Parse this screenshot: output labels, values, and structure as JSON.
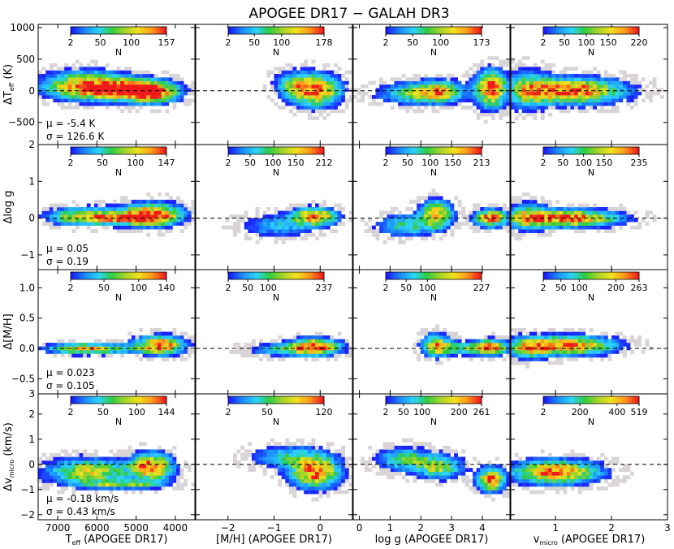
{
  "chart_data": {
    "type": "heatmap",
    "title": "APOGEE DR17 − GALAH DR3",
    "colorbar_label": "N",
    "colormap": [
      "#1a1aff",
      "#1a8cff",
      "#2bd4ff",
      "#2ecc40",
      "#a8d42a",
      "#f2e21a",
      "#ff9a1a",
      "#f01a1a"
    ],
    "outlier_color": "#d8d4d8",
    "zero_line": true,
    "columns": [
      {
        "xlabel": "T_eff (APOGEE DR17)",
        "xlabel_main": "T",
        "xlabel_sub": "eff",
        "xlabel_rest": " (APOGEE DR17)",
        "xlim": [
          7500,
          3500
        ],
        "xticks": [
          7000,
          6000,
          5000,
          4000
        ],
        "xticklabels": [
          "7000",
          "6000",
          "5000",
          "4000"
        ]
      },
      {
        "xlabel": "[M/H] (APOGEE DR17)",
        "xlabel_main": "[M/H] (APOGEE DR17)",
        "xlabel_sub": "",
        "xlabel_rest": "",
        "xlim": [
          -2.7,
          0.7
        ],
        "xticks": [
          -2,
          -1,
          0
        ],
        "xticklabels": [
          "−2",
          "−1",
          "0"
        ]
      },
      {
        "xlabel": "log g (APOGEE DR17)",
        "xlabel_main": "log g (APOGEE DR17)",
        "xlabel_sub": "",
        "xlabel_rest": "",
        "xlim": [
          -0.2,
          4.9
        ],
        "xticks": [
          0,
          1,
          2,
          3,
          4
        ],
        "xticklabels": [
          "0",
          "1",
          "2",
          "3",
          "4"
        ]
      },
      {
        "xlabel": "v_micro (APOGEE DR17)",
        "xlabel_main": "v",
        "xlabel_sub": "micro",
        "xlabel_rest": " (APOGEE DR17)",
        "xlim": [
          0.2,
          3.0
        ],
        "xticks": [
          1,
          2,
          3
        ],
        "xticklabels": [
          "1",
          "2",
          "3"
        ]
      }
    ],
    "rows": [
      {
        "ylabel": "ΔT_eff (K)",
        "ylabel_main": "ΔT",
        "ylabel_sub": "eff",
        "ylabel_rest": " (K)",
        "ylim": [
          -850,
          1050
        ],
        "yticks": [
          -500,
          0,
          500,
          1000
        ],
        "yticklabels": [
          "−500",
          "0",
          "500",
          "1000"
        ],
        "top_label": "",
        "mu": "μ = -5.4 K",
        "sigma": "σ = 126.6 K"
      },
      {
        "ylabel": "Δlog g",
        "ylabel_main": "Δlog g",
        "ylabel_sub": "",
        "ylabel_rest": "",
        "ylim": [
          -1.4,
          2.0
        ],
        "yticks": [
          -1,
          0,
          1
        ],
        "yticklabels": [
          "−1",
          "0",
          "1"
        ],
        "top_label": "2",
        "mu": "μ = 0.05",
        "sigma": "σ = 0.19"
      },
      {
        "ylabel": "Δ[M/H]",
        "ylabel_main": "Δ[M/H]",
        "ylabel_sub": "",
        "ylabel_rest": "",
        "ylim": [
          -0.75,
          1.3
        ],
        "yticks": [
          -0.5,
          0.0,
          0.5,
          1.0
        ],
        "yticklabels": [
          "−0.5",
          "0.0",
          "0.5",
          "1.0"
        ],
        "top_label": "",
        "mu": "μ = 0.023",
        "sigma": "σ = 0.105"
      },
      {
        "ylabel": "Δv_micro (km/s)",
        "ylabel_main": "Δv",
        "ylabel_sub": "micro",
        "ylabel_rest": " (km/s)",
        "ylim": [
          -2.2,
          2.8
        ],
        "yticks": [
          -2,
          -1,
          0,
          1,
          2
        ],
        "yticklabels": [
          "−2",
          "−1",
          "0",
          "1",
          "2"
        ],
        "top_label": "3",
        "mu": "μ = -0.18 km/s",
        "sigma": "σ = 0.43 km/s"
      }
    ],
    "colorbars": [
      [
        {
          "ticks": [
            "2",
            "50",
            "100",
            "157"
          ],
          "max": 157
        },
        {
          "ticks": [
            "2",
            "50",
            "100",
            "178"
          ],
          "max": 178
        },
        {
          "ticks": [
            "2",
            "50",
            "100",
            "173"
          ],
          "max": 173
        },
        {
          "ticks": [
            "2",
            "50",
            "100",
            "150",
            "220"
          ],
          "max": 220
        }
      ],
      [
        {
          "ticks": [
            "2",
            "50",
            "100",
            "147"
          ],
          "max": 147
        },
        {
          "ticks": [
            "2",
            "50",
            "100",
            "150",
            "212"
          ],
          "max": 212
        },
        {
          "ticks": [
            "2",
            "50",
            "100",
            "150",
            "213"
          ],
          "max": 213
        },
        {
          "ticks": [
            "2",
            "50",
            "100",
            "150",
            "235"
          ],
          "max": 235
        }
      ],
      [
        {
          "ticks": [
            "2",
            "50",
            "100",
            "140"
          ],
          "max": 140
        },
        {
          "ticks": [
            "2",
            "50",
            "100",
            "237"
          ],
          "max": 237
        },
        {
          "ticks": [
            "2",
            "50",
            "100",
            "227"
          ],
          "max": 227
        },
        {
          "ticks": [
            "2",
            "50",
            "100",
            "200",
            "263"
          ],
          "max": 263
        }
      ],
      [
        {
          "ticks": [
            "2",
            "50",
            "100",
            "144"
          ],
          "max": 144
        },
        {
          "ticks": [
            "2",
            "50",
            "120"
          ],
          "max": 120
        },
        {
          "ticks": [
            "2",
            "50",
            "100",
            "200",
            "261"
          ],
          "max": 261
        },
        {
          "ticks": [
            "2",
            "200",
            "400",
            "519"
          ],
          "max": 519
        }
      ]
    ],
    "density": [
      [
        [
          {
            "x": 6300,
            "y": 80,
            "sx": 700,
            "sy": 140,
            "w": 0.9
          },
          {
            "x": 5300,
            "y": 20,
            "sx": 600,
            "sy": 110,
            "w": 0.8
          },
          {
            "x": 4600,
            "y": -20,
            "sx": 450,
            "sy": 110,
            "w": 1.0
          }
        ],
        [
          {
            "x": -0.1,
            "y": 10,
            "sx": 0.35,
            "sy": 160,
            "w": 1.0
          },
          {
            "x": -0.6,
            "y": 100,
            "sx": 0.25,
            "sy": 130,
            "w": 0.4
          }
        ],
        [
          {
            "x": 2.6,
            "y": -10,
            "sx": 0.5,
            "sy": 110,
            "w": 0.7
          },
          {
            "x": 4.3,
            "y": 30,
            "sx": 0.35,
            "sy": 190,
            "w": 1.0
          },
          {
            "x": 1.8,
            "y": -40,
            "sx": 0.8,
            "sy": 110,
            "w": 0.5
          }
        ],
        [
          {
            "x": 1.3,
            "y": 0,
            "sx": 0.6,
            "sy": 130,
            "w": 1.0
          },
          {
            "x": 0.5,
            "y": 20,
            "sx": 0.25,
            "sy": 200,
            "w": 0.5
          }
        ]
      ],
      [
        [
          {
            "x": 6300,
            "y": 0.05,
            "sx": 600,
            "sy": 0.15,
            "w": 0.8
          },
          {
            "x": 4600,
            "y": 0.1,
            "sx": 500,
            "sy": 0.2,
            "w": 1.0
          },
          {
            "x": 5200,
            "y": 0.0,
            "sx": 600,
            "sy": 0.1,
            "w": 0.6
          }
        ],
        [
          {
            "x": -0.1,
            "y": 0.05,
            "sx": 0.3,
            "sy": 0.15,
            "w": 1.0
          },
          {
            "x": -0.9,
            "y": -0.2,
            "sx": 0.5,
            "sy": 0.2,
            "w": 0.35
          }
        ],
        [
          {
            "x": 2.5,
            "y": 0.1,
            "sx": 0.35,
            "sy": 0.25,
            "w": 0.8
          },
          {
            "x": 4.3,
            "y": 0.0,
            "sx": 0.35,
            "sy": 0.15,
            "w": 1.0
          },
          {
            "x": 1.5,
            "y": -0.2,
            "sx": 0.6,
            "sy": 0.2,
            "w": 0.45
          }
        ],
        [
          {
            "x": 1.2,
            "y": 0.0,
            "sx": 0.6,
            "sy": 0.15,
            "w": 1.0
          },
          {
            "x": 0.5,
            "y": 0.05,
            "sx": 0.25,
            "sy": 0.25,
            "w": 0.5
          }
        ]
      ],
      [
        [
          {
            "x": 6200,
            "y": 0.0,
            "sx": 700,
            "sy": 0.06,
            "w": 0.8
          },
          {
            "x": 4400,
            "y": 0.05,
            "sx": 400,
            "sy": 0.1,
            "w": 1.0
          }
        ],
        [
          {
            "x": -0.1,
            "y": 0.03,
            "sx": 0.35,
            "sy": 0.09,
            "w": 1.0
          },
          {
            "x": -0.8,
            "y": -0.02,
            "sx": 0.5,
            "sy": 0.07,
            "w": 0.4
          }
        ],
        [
          {
            "x": 2.5,
            "y": 0.05,
            "sx": 0.3,
            "sy": 0.12,
            "w": 0.8
          },
          {
            "x": 4.3,
            "y": 0.02,
            "sx": 0.35,
            "sy": 0.08,
            "w": 1.0
          },
          {
            "x": 3.4,
            "y": 0.0,
            "sx": 0.5,
            "sy": 0.07,
            "w": 0.5
          }
        ],
        [
          {
            "x": 1.2,
            "y": 0.05,
            "sx": 0.55,
            "sy": 0.1,
            "w": 1.0
          },
          {
            "x": 0.5,
            "y": 0.0,
            "sx": 0.25,
            "sy": 0.12,
            "w": 0.5
          }
        ]
      ],
      [
        [
          {
            "x": 6200,
            "y": -0.3,
            "sx": 700,
            "sy": 0.35,
            "w": 0.7
          },
          {
            "x": 4600,
            "y": -0.1,
            "sx": 350,
            "sy": 0.35,
            "w": 1.0
          },
          {
            "x": 5300,
            "y": -0.8,
            "sx": 700,
            "sy": 0.1,
            "w": 0.5
          }
        ],
        [
          {
            "x": -0.1,
            "y": -0.3,
            "sx": 0.35,
            "sy": 0.4,
            "w": 1.0
          },
          {
            "x": -0.7,
            "y": 0.3,
            "sx": 0.5,
            "sy": 0.3,
            "w": 0.4
          }
        ],
        [
          {
            "x": 2.6,
            "y": -0.1,
            "sx": 0.5,
            "sy": 0.3,
            "w": 0.6
          },
          {
            "x": 4.3,
            "y": -0.6,
            "sx": 0.3,
            "sy": 0.3,
            "w": 1.0
          },
          {
            "x": 1.5,
            "y": 0.2,
            "sx": 0.6,
            "sy": 0.3,
            "w": 0.5
          }
        ],
        [
          {
            "x": 1.0,
            "y": -0.3,
            "sx": 0.5,
            "sy": 0.3,
            "w": 1.0
          }
        ]
      ]
    ]
  }
}
